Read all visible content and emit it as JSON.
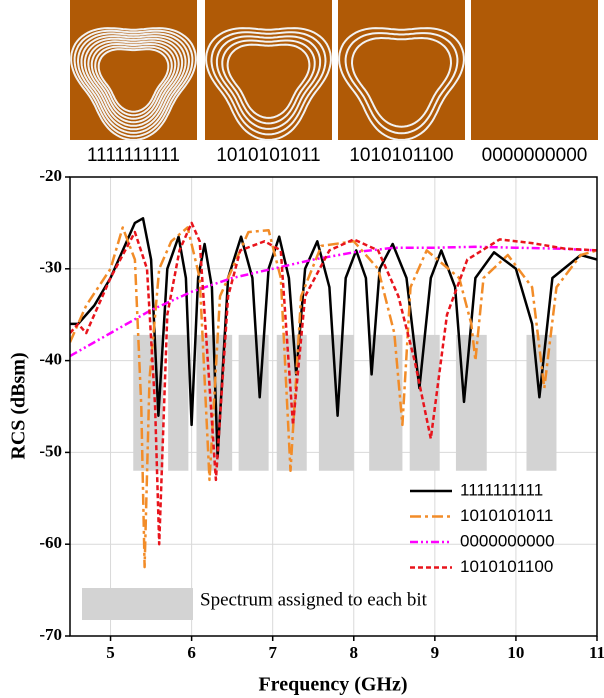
{
  "panels": [
    {
      "label": "1111111111"
    },
    {
      "label": "1010101011"
    },
    {
      "label": "1010101100"
    },
    {
      "label": "0000000000"
    }
  ],
  "chart_data": {
    "type": "line",
    "xlabel": "Frequency (GHz)",
    "ylabel": "RCS (dBsm)",
    "xlim": [
      4.5,
      11
    ],
    "ylim": [
      -70,
      -20
    ],
    "xticks": [
      5,
      6,
      7,
      8,
      9,
      10,
      11
    ],
    "yticks": [
      -70,
      -60,
      -50,
      -40,
      -30,
      -20
    ],
    "grid": true,
    "bands": {
      "name": "Spectrum assigned to each bit",
      "color": "#d3d3d3",
      "y_range": [
        -37.2,
        -52
      ],
      "ranges": [
        [
          5.28,
          5.65
        ],
        [
          5.71,
          5.96
        ],
        [
          6.06,
          6.5
        ],
        [
          6.58,
          6.95
        ],
        [
          7.05,
          7.42
        ],
        [
          7.57,
          8.0
        ],
        [
          8.19,
          8.6
        ],
        [
          8.69,
          9.06
        ],
        [
          9.26,
          9.64
        ],
        [
          10.13,
          10.5
        ]
      ]
    },
    "series": [
      {
        "name": "1111111111",
        "color": "#000000",
        "style": "solid",
        "x": [
          4.5,
          4.6,
          4.8,
          5.0,
          5.2,
          5.3,
          5.4,
          5.5,
          5.59,
          5.7,
          5.84,
          5.93,
          6.0,
          6.08,
          6.16,
          6.25,
          6.32,
          6.45,
          6.61,
          6.75,
          6.84,
          6.95,
          7.08,
          7.2,
          7.29,
          7.4,
          7.55,
          7.7,
          7.8,
          7.9,
          8.03,
          8.15,
          8.22,
          8.32,
          8.48,
          8.65,
          8.81,
          8.95,
          9.08,
          9.25,
          9.36,
          9.5,
          9.73,
          10.0,
          10.2,
          10.29,
          10.45,
          10.8,
          11
        ],
        "values": [
          -36,
          -36,
          -34,
          -31,
          -27,
          -25,
          -24.5,
          -29,
          -46,
          -30,
          -26.5,
          -31,
          -47,
          -31,
          -27.3,
          -32,
          -50.5,
          -31,
          -26.5,
          -31,
          -44,
          -30,
          -26.5,
          -31,
          -41.5,
          -30,
          -27,
          -32,
          -46,
          -31,
          -28,
          -31,
          -41.5,
          -30,
          -27.3,
          -31,
          -43,
          -31,
          -28,
          -32,
          -44.5,
          -31,
          -28.2,
          -30,
          -36,
          -44,
          -31,
          -28.5,
          -29
        ]
      },
      {
        "name": "1010101011",
        "color": "#f28c28",
        "style": "dashdot",
        "x": [
          4.5,
          4.7,
          5.0,
          5.15,
          5.3,
          5.38,
          5.42,
          5.48,
          5.6,
          5.75,
          5.95,
          6.1,
          6.22,
          6.35,
          6.7,
          6.95,
          7.1,
          7.22,
          7.35,
          7.6,
          8.0,
          8.3,
          8.5,
          8.6,
          8.7,
          8.9,
          9.3,
          9.45,
          9.5,
          9.6,
          9.9,
          10.2,
          10.35,
          10.5,
          10.8,
          11
        ],
        "values": [
          -38,
          -34,
          -30,
          -25.5,
          -29,
          -45,
          -62.5,
          -42,
          -30,
          -27,
          -25.5,
          -31,
          -53,
          -33,
          -26,
          -25.8,
          -31,
          -52,
          -33,
          -27.5,
          -27,
          -30,
          -37,
          -47,
          -32,
          -28,
          -31,
          -36,
          -40,
          -31,
          -28.5,
          -32,
          -43,
          -32,
          -28.5,
          -28
        ]
      },
      {
        "name": "0000000000",
        "color": "#ff00ff",
        "style": "dashdotdot",
        "x": [
          4.5,
          5.0,
          5.5,
          6.0,
          6.5,
          7.0,
          7.5,
          8.0,
          8.5,
          9.0,
          9.5,
          10.0,
          10.5,
          11
        ],
        "values": [
          -39.5,
          -37,
          -34.5,
          -32.5,
          -31,
          -30,
          -29,
          -28.2,
          -27.7,
          -27.7,
          -27.6,
          -27.7,
          -27.8,
          -28
        ]
      },
      {
        "name": "1010101100",
        "color": "#e8141c",
        "style": "dashed",
        "x": [
          4.5,
          4.6,
          4.7,
          4.8,
          5.0,
          5.3,
          5.45,
          5.55,
          5.6,
          5.7,
          5.85,
          6.0,
          6.1,
          6.3,
          6.45,
          6.6,
          6.9,
          7.1,
          7.25,
          7.4,
          7.7,
          8.0,
          8.3,
          8.55,
          8.75,
          8.95,
          9.15,
          9.4,
          9.8,
          10.2,
          10.6,
          11
        ],
        "values": [
          -37,
          -36,
          -37,
          -35,
          -31,
          -26,
          -30,
          -45,
          -60,
          -35,
          -28,
          -25,
          -27,
          -53,
          -33,
          -28,
          -27,
          -28,
          -47,
          -33,
          -28,
          -26.8,
          -28,
          -33,
          -40,
          -48.5,
          -35,
          -29,
          -26.8,
          -27.2,
          -27.8,
          -28
        ]
      }
    ]
  }
}
